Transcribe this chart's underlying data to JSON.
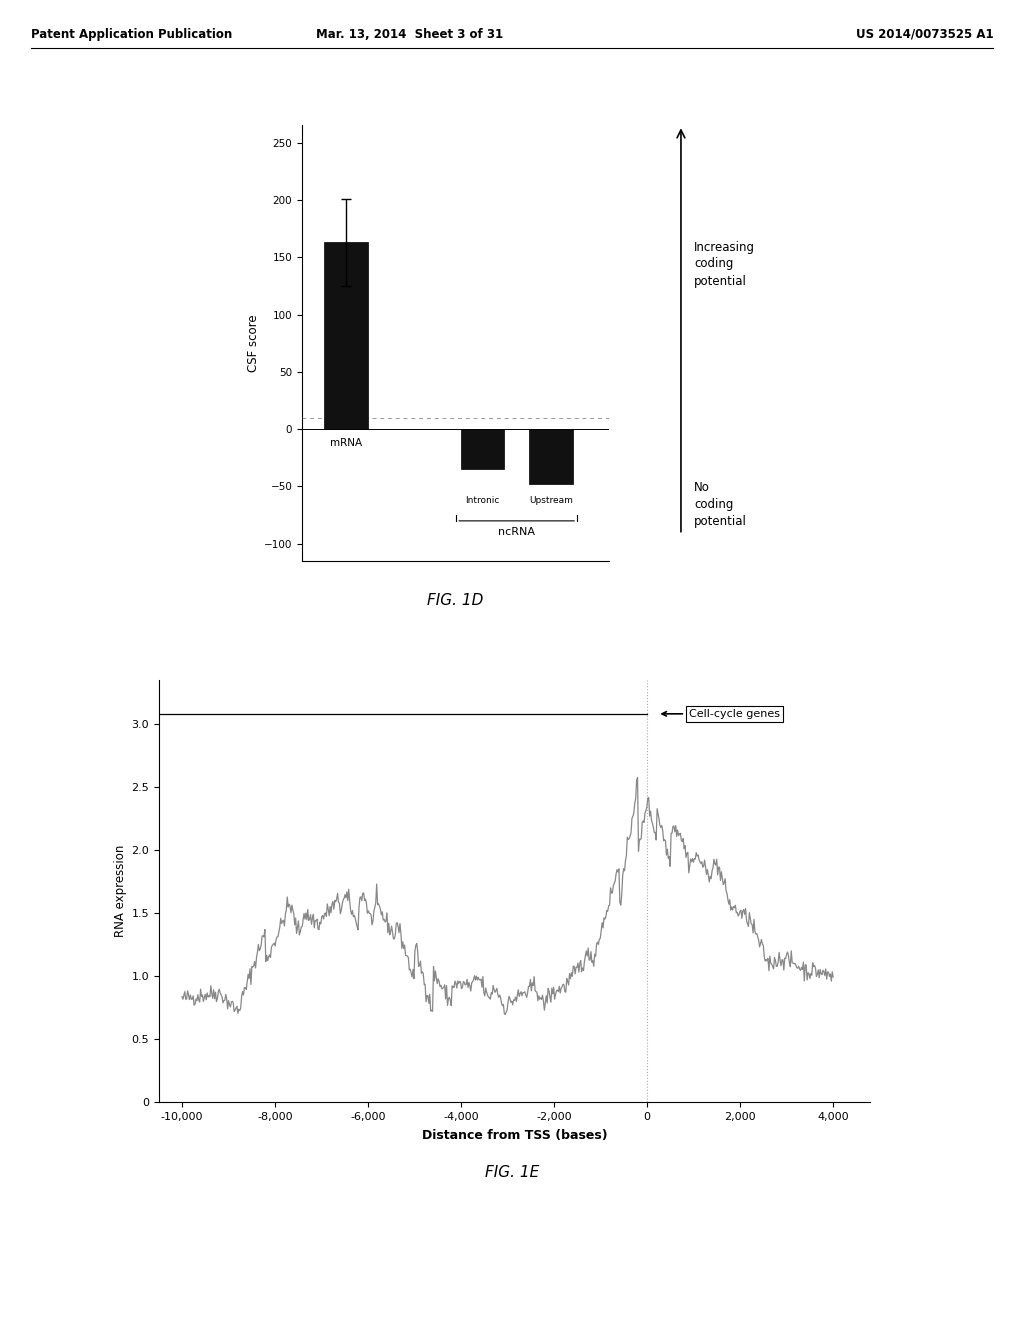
{
  "fig1d": {
    "bar_categories": [
      "mRNA",
      "Intronic",
      "Upstream"
    ],
    "bar_values": [
      163,
      -35,
      -48
    ],
    "bar_error": [
      38,
      0,
      0
    ],
    "bar_colors": [
      "#111111",
      "#111111",
      "#111111"
    ],
    "ylabel": "CSF score",
    "yticks": [
      -100,
      -50,
      0,
      50,
      100,
      150,
      200,
      250
    ],
    "ylim": [
      -115,
      265
    ],
    "dashed_line_y": 10,
    "annotation_increasing": "Increasing\ncoding\npotential",
    "annotation_no_coding": "No\ncoding\npotential",
    "ncRNA_label": "ncRNA",
    "fig_label": "FIG. 1D"
  },
  "fig1e": {
    "ylabel": "RNA expression",
    "xlabel": "Distance from TSS (bases)",
    "xticks": [
      -10000,
      -8000,
      -6000,
      -4000,
      -2000,
      0,
      2000,
      4000
    ],
    "xticklabels": [
      "-10,000",
      "-8,000",
      "-6,000",
      "-4,000",
      "-2,000",
      "0",
      "2,000",
      "4,000"
    ],
    "yticks": [
      0,
      0.5,
      1.0,
      1.5,
      2.0,
      2.5,
      3.0
    ],
    "ylim": [
      0,
      3.35
    ],
    "xlim": [
      -10500,
      4800
    ],
    "tss_x": 0,
    "horizontal_line_y": 3.08,
    "cell_cycle_label": "Cell-cycle genes",
    "fig_label": "FIG. 1E",
    "line_color": "#888888"
  },
  "header_left": "Patent Application Publication",
  "header_center": "Mar. 13, 2014  Sheet 3 of 31",
  "header_right": "US 2014/0073525 A1"
}
